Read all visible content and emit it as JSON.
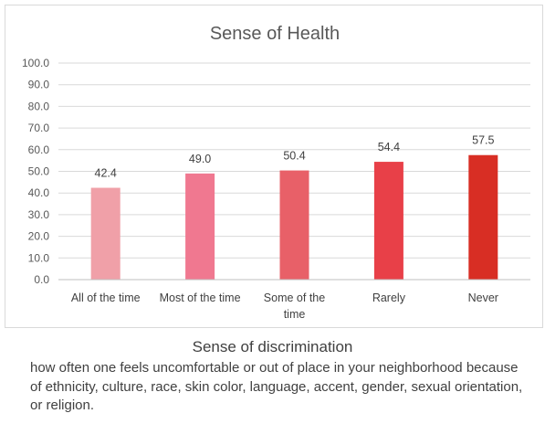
{
  "chart_data": {
    "type": "bar",
    "title": "Sense of Health",
    "categories": [
      "All of the time",
      "Most of the time",
      "Some of the time",
      "Rarely",
      "Never"
    ],
    "category_lines": [
      [
        "All of the time"
      ],
      [
        "Most of the time"
      ],
      [
        "Some of the",
        "time"
      ],
      [
        "Rarely"
      ],
      [
        "Never"
      ]
    ],
    "values": [
      42.4,
      49.0,
      50.4,
      54.4,
      57.5
    ],
    "value_labels": [
      "42.4",
      "49.0",
      "50.4",
      "54.4",
      "57.5"
    ],
    "bar_colors": [
      "#f0a0a8",
      "#f07890",
      "#e86068",
      "#e84048",
      "#d82e24"
    ],
    "ylim": [
      0,
      100
    ],
    "yticks": [
      "0.0",
      "10.0",
      "20.0",
      "30.0",
      "40.0",
      "50.0",
      "60.0",
      "70.0",
      "80.0",
      "90.0",
      "100.0"
    ],
    "ytick_values": [
      0,
      10,
      20,
      30,
      40,
      50,
      60,
      70,
      80,
      90,
      100
    ],
    "grid": true,
    "xlabel": "",
    "ylabel": ""
  },
  "caption": {
    "title": "Sense of discrimination",
    "description": "how often one feels uncomfortable or out of place in your neighborhood because of ethnicity, culture, race, skin color, language, accent, gender, sexual orientation, or religion."
  }
}
